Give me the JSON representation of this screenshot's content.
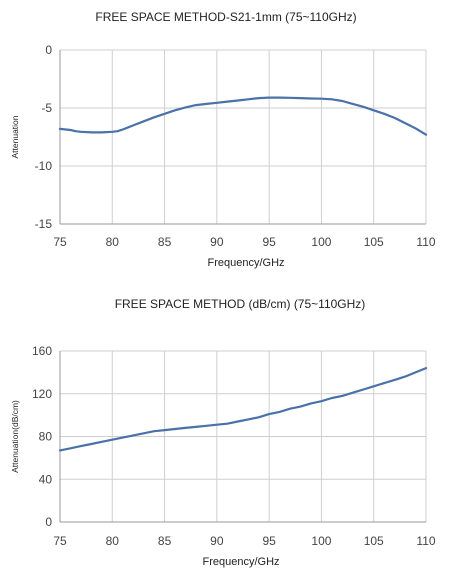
{
  "chart_data": [
    {
      "type": "line",
      "title": "FREE SPACE METHOD-S21-1mm (75~110GHz)",
      "xlabel": "Frequency/GHz",
      "ylabel": "Attenuation",
      "xlim": [
        75,
        110
      ],
      "ylim": [
        -15,
        0
      ],
      "xticks": [
        75,
        80,
        85,
        90,
        95,
        100,
        105,
        110
      ],
      "yticks": [
        0,
        -5,
        -10,
        -15
      ],
      "grid": true,
      "series_color": "#4a72a8",
      "series": [
        {
          "x": [
            75,
            76,
            76.5,
            77,
            78,
            79,
            80,
            80.5,
            81,
            82,
            83,
            84,
            85,
            86,
            87,
            88,
            89,
            90,
            91,
            92,
            93,
            94,
            95,
            96,
            97,
            98,
            99,
            100,
            101,
            102,
            103,
            104,
            105,
            106,
            107,
            108,
            109,
            110
          ],
          "y": [
            -6.8,
            -6.9,
            -7.0,
            -7.05,
            -7.1,
            -7.1,
            -7.05,
            -7.0,
            -6.85,
            -6.5,
            -6.15,
            -5.8,
            -5.5,
            -5.2,
            -4.95,
            -4.75,
            -4.65,
            -4.55,
            -4.45,
            -4.35,
            -4.25,
            -4.15,
            -4.1,
            -4.1,
            -4.12,
            -4.15,
            -4.18,
            -4.2,
            -4.25,
            -4.4,
            -4.65,
            -4.9,
            -5.2,
            -5.5,
            -5.85,
            -6.3,
            -6.75,
            -7.3
          ]
        }
      ]
    },
    {
      "type": "line",
      "title": "FREE SPACE METHOD (dB/cm) (75~110GHz)",
      "xlabel": "Frequency/GHz",
      "ylabel": "Attenuation(dB/cm)",
      "xlim": [
        75,
        110
      ],
      "ylim": [
        0,
        160
      ],
      "xticks": [
        75,
        80,
        85,
        90,
        95,
        100,
        105,
        110
      ],
      "yticks": [
        160,
        120,
        80,
        40,
        0
      ],
      "grid": true,
      "series_color": "#4a72a8",
      "series": [
        {
          "x": [
            75,
            76,
            77,
            78,
            79,
            80,
            81,
            82,
            83,
            84,
            85,
            86,
            87,
            88,
            89,
            90,
            91,
            92,
            93,
            94,
            95,
            96,
            97,
            98,
            99,
            100,
            101,
            102,
            103,
            104,
            105,
            106,
            107,
            108,
            109,
            110
          ],
          "y": [
            67,
            69,
            71,
            73,
            75,
            77,
            79,
            81,
            83,
            85,
            86,
            87,
            88,
            89,
            90,
            91,
            92,
            94,
            96,
            98,
            101,
            103,
            106,
            108,
            111,
            113,
            116,
            118,
            121,
            124,
            127,
            130,
            133,
            136,
            140,
            144
          ]
        }
      ]
    }
  ]
}
